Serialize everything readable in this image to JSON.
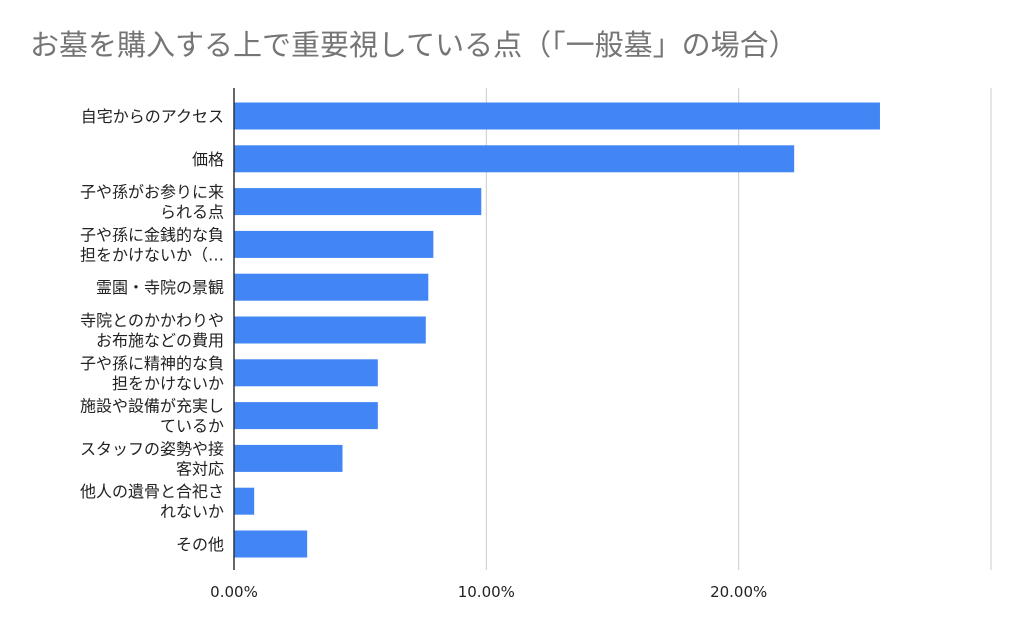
{
  "chart_data": {
    "type": "bar",
    "orientation": "horizontal",
    "title": "お墓を購入する上で重要視している点（「一般墓」の場合）",
    "xlabel": "",
    "ylabel": "",
    "categories": [
      "自宅からのアクセス",
      "価格",
      "子や孫がお参りに来られる点",
      "子や孫に金銭的な負担をかけないか（…",
      "霊園・寺院の景観",
      "寺院とのかかわりやお布施などの費用",
      "子や孫に精神的な負担をかけないか",
      "施設や設備が充実しているか",
      "スタッフの姿勢や接客対応",
      "他人の遺骨と合祀されないか",
      "その他"
    ],
    "category_lines": [
      [
        "自宅からのアクセス"
      ],
      [
        "価格"
      ],
      [
        "子や孫がお参りに来",
        "られる点"
      ],
      [
        "子や孫に金銭的な負",
        "担をかけないか（…"
      ],
      [
        "霊園・寺院の景観"
      ],
      [
        "寺院とのかかわりや",
        "お布施などの費用"
      ],
      [
        "子や孫に精神的な負",
        "担をかけないか"
      ],
      [
        "施設や設備が充実し",
        "ているか"
      ],
      [
        "スタッフの姿勢や接",
        "客対応"
      ],
      [
        "他人の遺骨と合祀さ",
        "れないか"
      ],
      [
        "その他"
      ]
    ],
    "values": [
      25.6,
      22.2,
      9.8,
      7.9,
      7.7,
      7.6,
      5.7,
      5.7,
      4.3,
      0.8,
      2.9
    ],
    "xlim": [
      0,
      30
    ],
    "xticks": [
      0,
      10,
      20,
      30
    ],
    "xtick_labels": [
      "0.00%",
      "10.00%",
      "20.00%",
      ""
    ],
    "grid": true,
    "legend": "none",
    "colors": {
      "bar": "#4285f4",
      "grid": "#cccccc",
      "axis": "#333333",
      "title": "#757575",
      "label": "#222222"
    }
  }
}
